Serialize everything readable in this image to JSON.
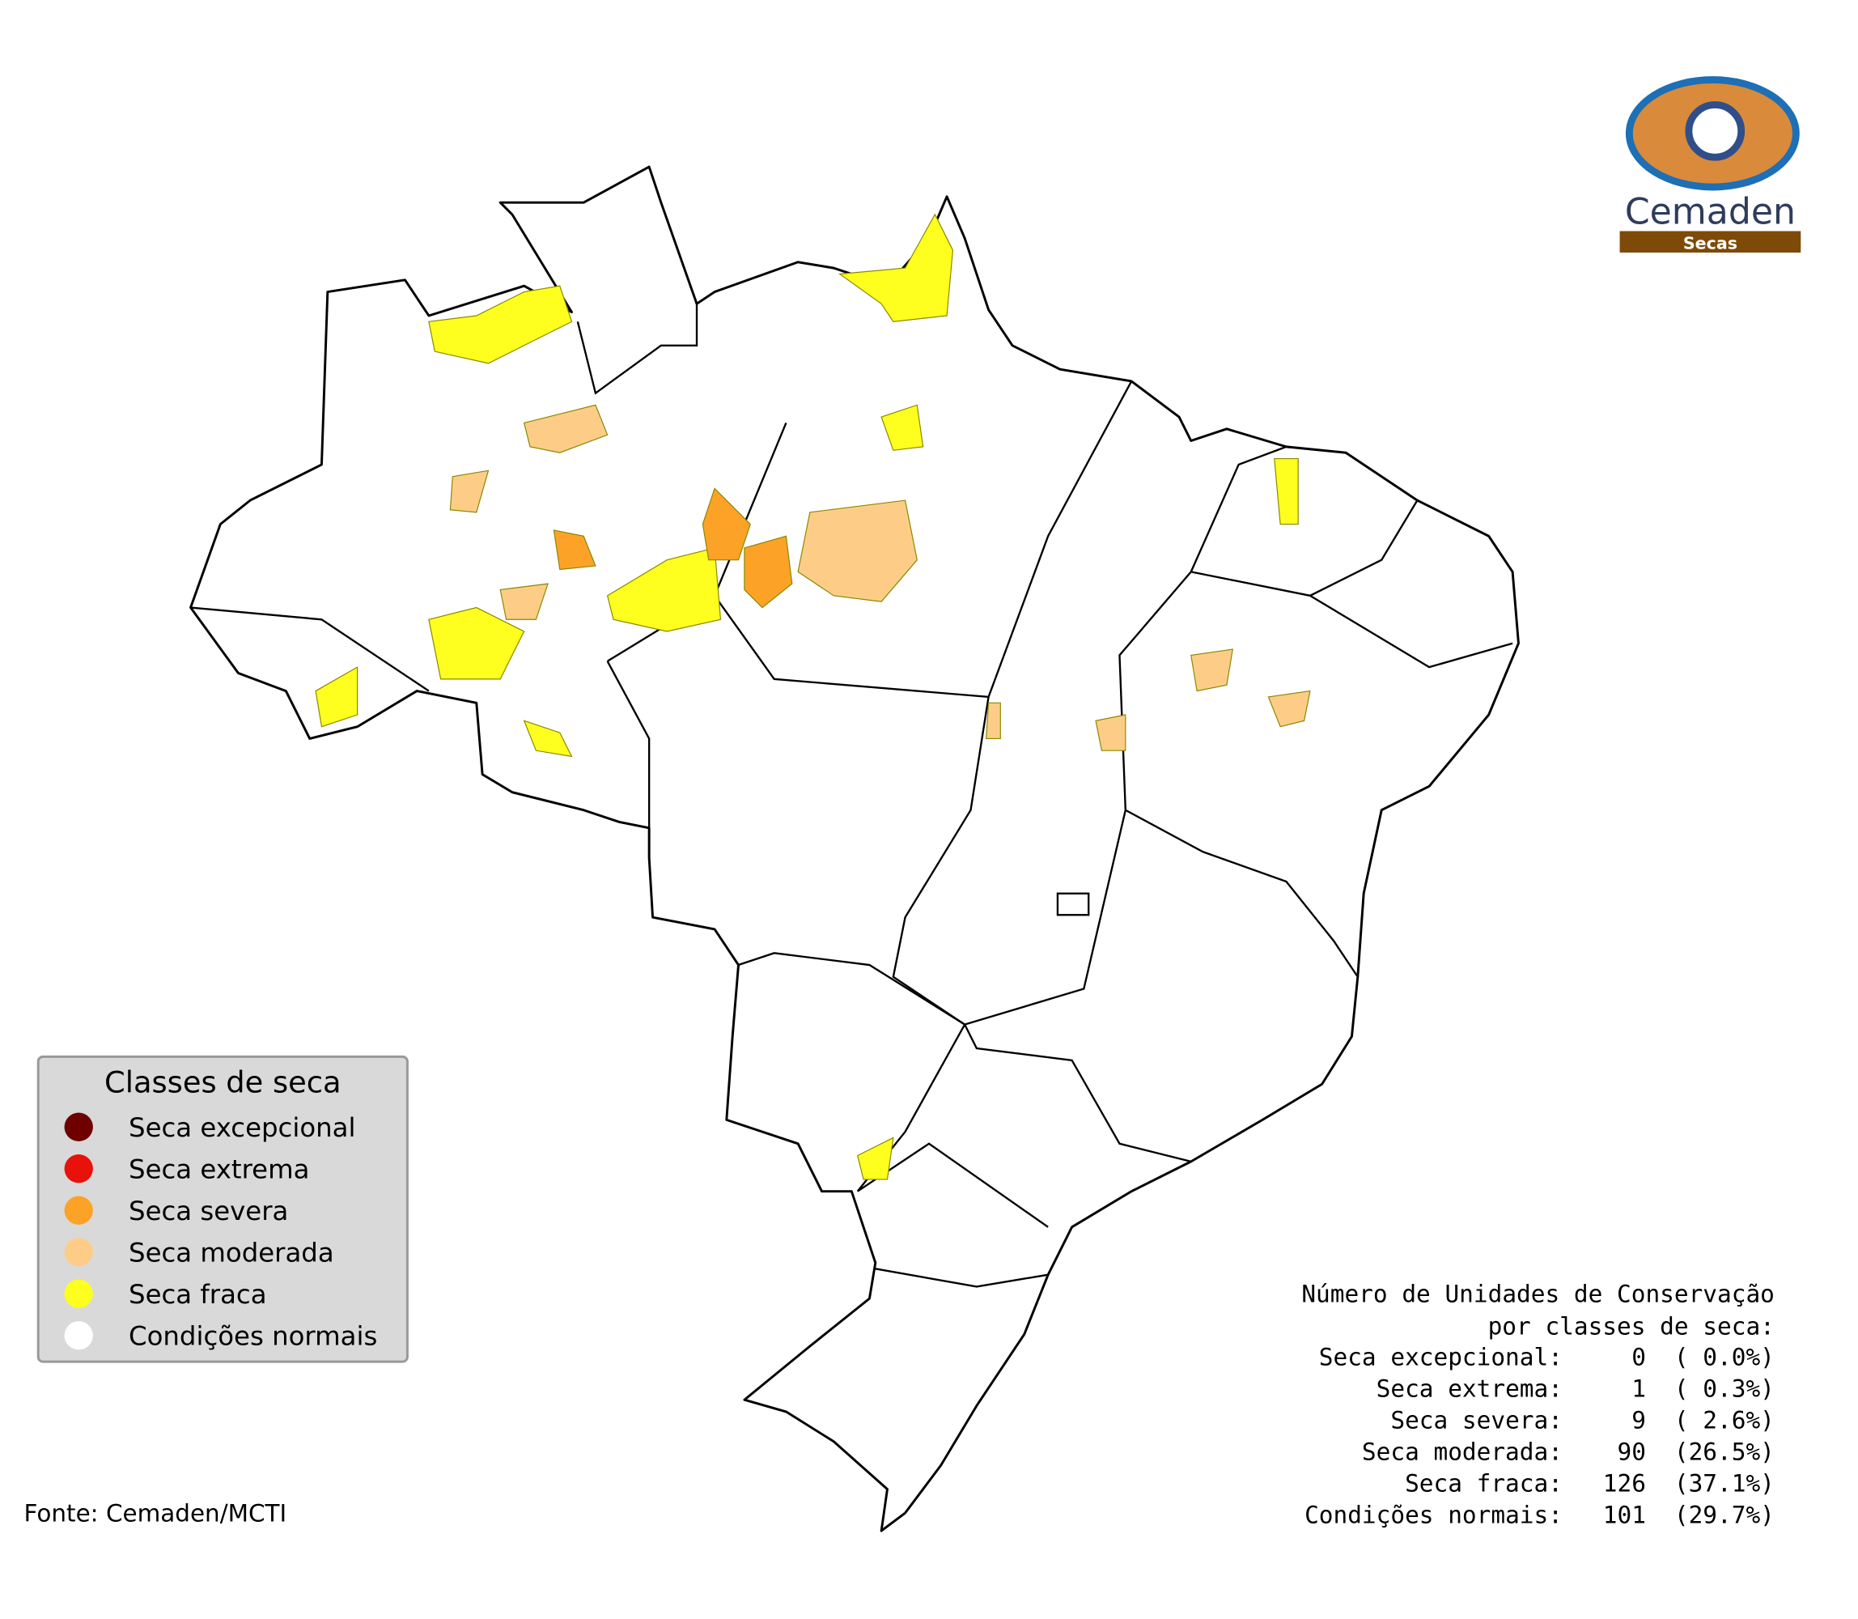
{
  "logo": {
    "name": "Cemaden",
    "subtitle": "Secas"
  },
  "legend": {
    "title": "Classes de seca",
    "items": [
      {
        "label": "Seca excepcional",
        "color": "#6e0000"
      },
      {
        "label": "Seca extrema",
        "color": "#e8110b"
      },
      {
        "label": "Seca severa",
        "color": "#fca327"
      },
      {
        "label": "Seca moderada",
        "color": "#fdcd87"
      },
      {
        "label": "Seca fraca",
        "color": "#ffff1f"
      },
      {
        "label": "Condições normais",
        "color": "#ffffff"
      }
    ]
  },
  "summary": {
    "title_line1": "Número de Unidades de Conservação",
    "title_line2": "por classes de seca:",
    "rows": [
      {
        "label": "Seca excepcional:",
        "count": 0,
        "percent": "( 0.0%)"
      },
      {
        "label": "Seca extrema:",
        "count": 1,
        "percent": "( 0.3%)"
      },
      {
        "label": "Seca severa:",
        "count": 9,
        "percent": "( 2.6%)"
      },
      {
        "label": "Seca moderada:",
        "count": 90,
        "percent": "(26.5%)"
      },
      {
        "label": "Seca fraca:",
        "count": 126,
        "percent": "(37.1%)"
      },
      {
        "label": "Condições normais:",
        "count": 101,
        "percent": "(29.7%)"
      }
    ]
  },
  "source": "Fonte: Cemaden/MCTI"
}
